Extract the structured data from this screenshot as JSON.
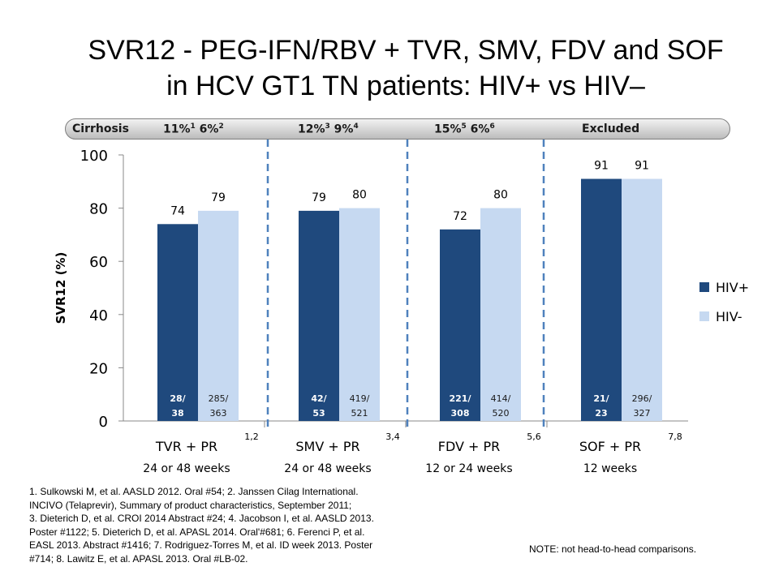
{
  "title": {
    "line1": "SVR12 - PEG-IFN/RBV + TVR, SMV, FDV and SOF",
    "line2": "in HCV GT1 TN patients: HIV+ vs HIV–"
  },
  "cirrhosis": {
    "label": "Cirrhosis",
    "groups": [
      {
        "a": "11%",
        "a_sup": "1",
        "b": "6%",
        "b_sup": "2"
      },
      {
        "a": "12%",
        "a_sup": "3",
        "b": "9%",
        "b_sup": "4"
      },
      {
        "a": "15%",
        "a_sup": "5",
        "b": "6%",
        "b_sup": "6"
      },
      {
        "excluded": "Excluded"
      }
    ]
  },
  "chart_data": {
    "type": "bar",
    "ylabel": "SVR12 (%)",
    "ylim": [
      0,
      100
    ],
    "yticks": [
      0,
      20,
      40,
      60,
      80,
      100
    ],
    "categories": [
      "TVR + PR",
      "SMV + PR",
      "FDV + PR",
      "SOF + PR"
    ],
    "durations": [
      "24 or 48 weeks",
      "24 or 48 weeks",
      "12 or 24 weeks",
      "12 weeks"
    ],
    "refs": [
      "1,2",
      "3,4",
      "5,6",
      "7,8"
    ],
    "series": [
      {
        "name": "HIV+",
        "color": "#1f497d",
        "values": [
          74,
          79,
          72,
          91
        ],
        "counts": [
          [
            "28/",
            "38"
          ],
          [
            "42/",
            "53"
          ],
          [
            "221/",
            "308"
          ],
          [
            "21/",
            "23"
          ]
        ]
      },
      {
        "name": "HIV-",
        "color": "#c6d9f1",
        "values": [
          79,
          80,
          80,
          91
        ],
        "counts": [
          [
            "285/",
            "363"
          ],
          [
            "419/",
            "521"
          ],
          [
            "414/",
            "520"
          ],
          [
            "296/",
            "327"
          ]
        ]
      }
    ]
  },
  "references": [
    "1. Sulkowski M, et al. AASLD 2012. Oral #54; 2. Janssen Cilag International.",
    "INCIVO (Telaprevir), Summary of product characteristics, September 2011;",
    "3. Dieterich D, et al. CROI 2014 Abstract #24; 4. Jacobson I, et al. AASLD 2013.",
    "Poster #1122; 5. Dieterich D, et al. APASL 2014. Oral'#681; 6. Ferenci P, et al.",
    "EASL 2013. Abstract #1416; 7. Rodriguez-Torres M, et al. ID week 2013. Poster",
    "#714; 8. Lawitz E, et al. APASL 2013. Oral #LB-02."
  ],
  "note": "NOTE: not head-to-head comparisons."
}
